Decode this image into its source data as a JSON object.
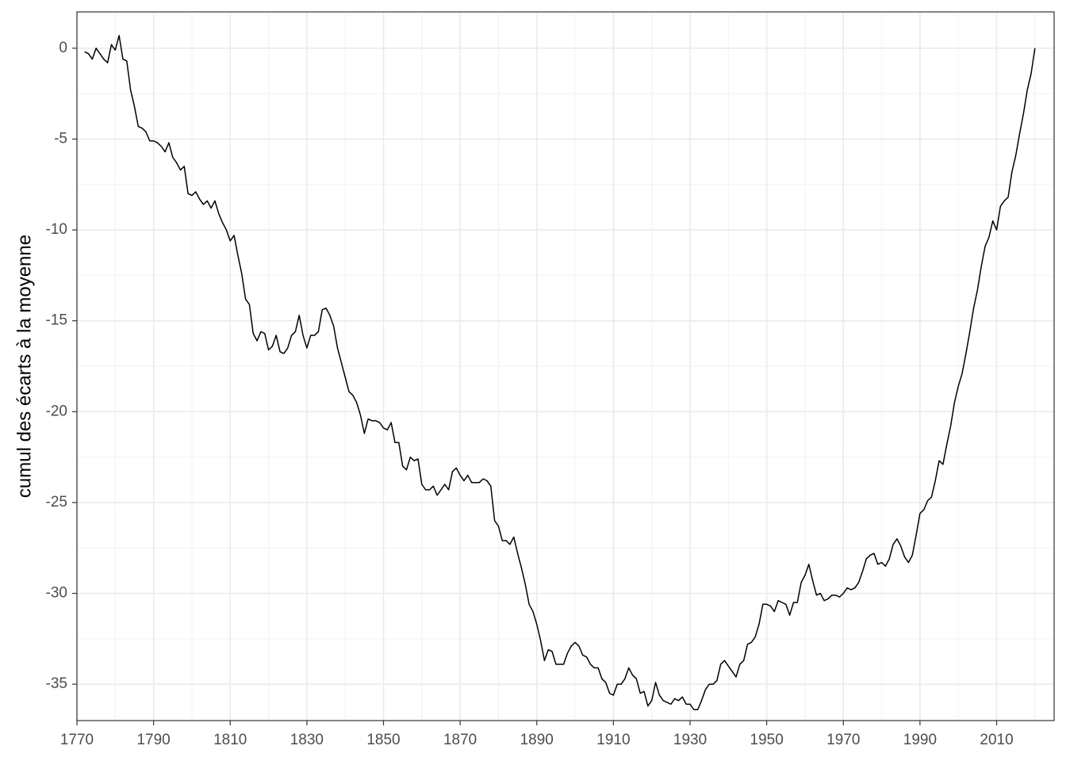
{
  "chart_data": {
    "type": "line",
    "ylabel": "cumul des écarts à la moyenne",
    "color": "#000000",
    "grid": true,
    "xlim": [
      1770,
      2025
    ],
    "xticks": [
      1770,
      1790,
      1810,
      1830,
      1850,
      1870,
      1890,
      1910,
      1930,
      1950,
      1970,
      1990,
      2010
    ],
    "xminor": [
      1780,
      1800,
      1820,
      1840,
      1860,
      1880,
      1900,
      1920,
      1940,
      1960,
      1980,
      2000,
      2020
    ],
    "ylim": [
      -37,
      2
    ],
    "yticks": [
      0,
      -5,
      -10,
      -15,
      -20,
      -25,
      -30,
      -35
    ],
    "yminor": [
      -2.5,
      -7.5,
      -12.5,
      -17.5,
      -22.5,
      -27.5,
      -32.5
    ],
    "x": [
      1772,
      1773,
      1774,
      1775,
      1776,
      1777,
      1778,
      1779,
      1780,
      1781,
      1782,
      1783,
      1784,
      1785,
      1786,
      1787,
      1788,
      1789,
      1790,
      1791,
      1792,
      1793,
      1794,
      1795,
      1796,
      1797,
      1798,
      1799,
      1800,
      1801,
      1802,
      1803,
      1804,
      1805,
      1806,
      1807,
      1808,
      1809,
      1810,
      1811,
      1812,
      1813,
      1814,
      1815,
      1816,
      1817,
      1818,
      1819,
      1820,
      1821,
      1822,
      1823,
      1824,
      1825,
      1826,
      1827,
      1828,
      1829,
      1830,
      1831,
      1832,
      1833,
      1834,
      1835,
      1836,
      1837,
      1838,
      1839,
      1840,
      1841,
      1842,
      1843,
      1844,
      1845,
      1846,
      1847,
      1848,
      1849,
      1850,
      1851,
      1852,
      1853,
      1854,
      1855,
      1856,
      1857,
      1858,
      1859,
      1860,
      1861,
      1862,
      1863,
      1864,
      1865,
      1866,
      1867,
      1868,
      1869,
      1870,
      1871,
      1872,
      1873,
      1874,
      1875,
      1876,
      1877,
      1878,
      1879,
      1880,
      1881,
      1882,
      1883,
      1884,
      1885,
      1886,
      1887,
      1888,
      1889,
      1890,
      1891,
      1892,
      1893,
      1894,
      1895,
      1896,
      1897,
      1898,
      1899,
      1900,
      1901,
      1902,
      1903,
      1904,
      1905,
      1906,
      1907,
      1908,
      1909,
      1910,
      1911,
      1912,
      1913,
      1914,
      1915,
      1916,
      1917,
      1918,
      1919,
      1920,
      1921,
      1922,
      1923,
      1924,
      1925,
      1926,
      1927,
      1928,
      1929,
      1930,
      1931,
      1932,
      1933,
      1934,
      1935,
      1936,
      1937,
      1938,
      1939,
      1940,
      1941,
      1942,
      1943,
      1944,
      1945,
      1946,
      1947,
      1948,
      1949,
      1950,
      1951,
      1952,
      1953,
      1954,
      1955,
      1956,
      1957,
      1958,
      1959,
      1960,
      1961,
      1962,
      1963,
      1964,
      1965,
      1966,
      1967,
      1968,
      1969,
      1970,
      1971,
      1972,
      1973,
      1974,
      1975,
      1976,
      1977,
      1978,
      1979,
      1980,
      1981,
      1982,
      1983,
      1984,
      1985,
      1986,
      1987,
      1988,
      1989,
      1990,
      1991,
      1992,
      1993,
      1994,
      1995,
      1996,
      1997,
      1998,
      1999,
      2000,
      2001,
      2002,
      2003,
      2004,
      2005,
      2006,
      2007,
      2008,
      2009,
      2010,
      2011,
      2012,
      2013,
      2014,
      2015,
      2016,
      2017,
      2018,
      2019,
      2020
    ],
    "values": [
      -0.2,
      -0.3,
      -0.6,
      0.0,
      -0.3,
      -0.6,
      -0.8,
      0.2,
      -0.1,
      0.7,
      -0.6,
      -0.7,
      -2.3,
      -3.2,
      -4.3,
      -4.4,
      -4.6,
      -5.1,
      -5.1,
      -5.2,
      -5.4,
      -5.7,
      -5.2,
      -6.0,
      -6.3,
      -6.7,
      -6.5,
      -8.0,
      -8.1,
      -7.9,
      -8.3,
      -8.6,
      -8.4,
      -8.8,
      -8.4,
      -9.1,
      -9.6,
      -10.0,
      -10.6,
      -10.3,
      -11.4,
      -12.4,
      -13.8,
      -14.1,
      -15.7,
      -16.1,
      -15.6,
      -15.7,
      -16.6,
      -16.4,
      -15.8,
      -16.7,
      -16.8,
      -16.5,
      -15.8,
      -15.6,
      -14.7,
      -15.8,
      -16.5,
      -15.8,
      -15.8,
      -15.6,
      -14.4,
      -14.3,
      -14.7,
      -15.3,
      -16.5,
      -17.3,
      -18.1,
      -18.9,
      -19.1,
      -19.5,
      -20.2,
      -21.2,
      -20.4,
      -20.5,
      -20.5,
      -20.6,
      -20.9,
      -21.0,
      -20.6,
      -21.7,
      -21.7,
      -23.0,
      -23.2,
      -22.5,
      -22.7,
      -22.6,
      -24.0,
      -24.3,
      -24.3,
      -24.1,
      -24.6,
      -24.3,
      -24.0,
      -24.3,
      -23.3,
      -23.1,
      -23.5,
      -23.8,
      -23.5,
      -23.9,
      -23.9,
      -23.9,
      -23.7,
      -23.8,
      -24.1,
      -26.0,
      -26.3,
      -27.1,
      -27.1,
      -27.3,
      -26.9,
      -27.8,
      -28.6,
      -29.5,
      -30.6,
      -31.0,
      -31.7,
      -32.6,
      -33.7,
      -33.1,
      -33.2,
      -33.9,
      -33.9,
      -33.9,
      -33.3,
      -32.9,
      -32.7,
      -32.9,
      -33.4,
      -33.5,
      -33.9,
      -34.1,
      -34.1,
      -34.7,
      -34.9,
      -35.5,
      -35.6,
      -35.0,
      -35.0,
      -34.7,
      -34.1,
      -34.5,
      -34.7,
      -35.5,
      -35.4,
      -36.2,
      -35.9,
      -34.9,
      -35.6,
      -35.9,
      -36.0,
      -36.1,
      -35.8,
      -35.9,
      -35.7,
      -36.1,
      -36.1,
      -36.4,
      -36.4,
      -35.9,
      -35.3,
      -35.0,
      -35.0,
      -34.8,
      -33.9,
      -33.7,
      -34.0,
      -34.3,
      -34.6,
      -33.9,
      -33.7,
      -32.8,
      -32.7,
      -32.4,
      -31.7,
      -30.6,
      -30.6,
      -30.7,
      -31.0,
      -30.4,
      -30.5,
      -30.6,
      -31.2,
      -30.5,
      -30.5,
      -29.4,
      -29.0,
      -28.4,
      -29.3,
      -30.1,
      -30.0,
      -30.4,
      -30.3,
      -30.1,
      -30.1,
      -30.2,
      -30.0,
      -29.7,
      -29.8,
      -29.7,
      -29.4,
      -28.8,
      -28.1,
      -27.9,
      -27.8,
      -28.4,
      -28.3,
      -28.5,
      -28.1,
      -27.3,
      -27.0,
      -27.4,
      -28.0,
      -28.3,
      -27.9,
      -26.8,
      -25.6,
      -25.4,
      -24.9,
      -24.7,
      -23.8,
      -22.7,
      -22.9,
      -21.8,
      -20.8,
      -19.5,
      -18.6,
      -17.9,
      -16.8,
      -15.6,
      -14.3,
      -13.3,
      -12.0,
      -10.9,
      -10.4,
      -9.5,
      -10.0,
      -8.7,
      -8.4,
      -8.2,
      -6.8,
      -5.9,
      -4.7,
      -3.6,
      -2.3,
      -1.4,
      0.0
    ]
  }
}
